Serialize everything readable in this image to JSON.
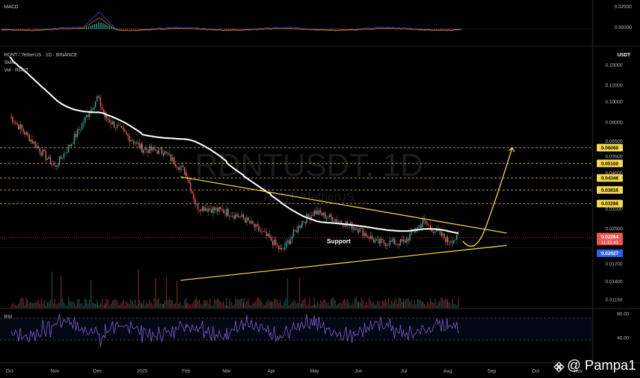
{
  "header": {
    "symbol_line": "RDNT / TetherUS · 1D · BINANCE",
    "sma_label": "SMA",
    "vol_label": "Vol · RDNT",
    "currency": "USDT"
  },
  "macd": {
    "title": "MACD",
    "ticks": [
      "0.02000",
      "0.00000"
    ]
  },
  "rsi": {
    "title": "RSI",
    "ticks": [
      "80.00",
      "40.00"
    ]
  },
  "watermark_main": "RDNTUSDT, 1D",
  "watermark_sub": "RDNT / TetherUS",
  "annotation_support": "Support",
  "signature": "@ Pampa1",
  "colors": {
    "up": "#26a69a",
    "down": "#ef5350",
    "sma": "#ffffff",
    "trendline": "#f5d94a",
    "level": "#f5d94a",
    "bg": "#000000"
  },
  "chart_data": {
    "type": "candlestick",
    "title": "RDNT / TetherUS · 1D · BINANCE",
    "y_scale": "log",
    "ylim": [
      0.0105,
      0.18
    ],
    "y_ticks": [
      "0.15000",
      "0.12000",
      "0.10000",
      "0.08000",
      "0.06500",
      "0.05500",
      "0.04600",
      "0.03100",
      "0.02500",
      "0.01700",
      "0.01400",
      "0.01150"
    ],
    "x_ticks": [
      "Oct",
      "Nov",
      "Dec",
      "2025",
      "Feb",
      "Mar",
      "Apr",
      "May",
      "Jun",
      "Jul",
      "Aug",
      "Sep",
      "Oct",
      "Nov"
    ],
    "price_path": [
      [
        "Oct",
        0.086
      ],
      [
        "Nov",
        0.049
      ],
      [
        "Nov 20",
        0.064
      ],
      [
        "Dec",
        0.105
      ],
      [
        "Dec 10",
        0.085
      ],
      [
        "2025",
        0.06
      ],
      [
        "Jan 15",
        0.058
      ],
      [
        "Feb",
        0.046
      ],
      [
        "Feb 10",
        0.032
      ],
      [
        "Mar",
        0.03
      ],
      [
        "Mar 15",
        0.028
      ],
      [
        "Apr",
        0.022
      ],
      [
        "Apr 10",
        0.0195
      ],
      [
        "Apr 25",
        0.027
      ],
      [
        "May",
        0.03
      ],
      [
        "May 15",
        0.028
      ],
      [
        "Jun",
        0.025
      ],
      [
        "Jun 15",
        0.0215
      ],
      [
        "Jul",
        0.0215
      ],
      [
        "Jul 15",
        0.027
      ],
      [
        "Aug",
        0.022
      ],
      [
        "Aug 10",
        0.02264
      ]
    ],
    "key_levels": [
      "0.06060",
      "0.05100",
      "0.04346",
      "0.03816",
      "0.03286"
    ],
    "current_price": {
      "value": "0.02264",
      "countdown": "11:33:43"
    },
    "sma_price": "0.02027",
    "trendlines": [
      {
        "name": "descending resistance",
        "from": [
          "Feb",
          0.044
        ],
        "to": [
          "Aug 15",
          0.0238
        ]
      },
      {
        "name": "ascending support",
        "from": [
          "Feb",
          0.0142
        ],
        "to": [
          "Aug 15",
          0.0208
        ]
      }
    ],
    "projection": {
      "from": [
        "Aug 10",
        0.0205
      ],
      "to": [
        "Sep",
        0.0605
      ]
    },
    "rsi_range": [
      40,
      80
    ],
    "legend": "none"
  }
}
